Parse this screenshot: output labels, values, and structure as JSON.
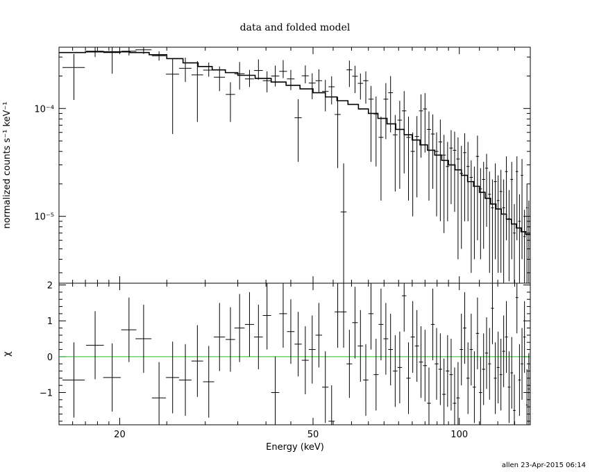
{
  "footer": "allen 23-Apr-2015 06:14",
  "chart_data": [
    {
      "type": "line",
      "title": "data and folded model",
      "xlabel": "",
      "ylabel": "normalized counts s⁻¹ keV⁻¹",
      "xscale": "log",
      "yscale": "log",
      "xlim": [
        15,
        140
      ],
      "ylim": [
        2.4e-06,
        0.00037
      ],
      "y_tick_labels": [
        "10⁻⁵",
        "10⁻⁴"
      ],
      "y_ticks": [
        1e-05,
        0.0001
      ],
      "series": [
        {
          "kind": "data",
          "x": [
            16.1,
            17.8,
            19.3,
            20.9,
            22.4,
            24.1,
            25.7,
            27.3,
            28.9,
            30.5,
            32.1,
            33.8,
            35.3,
            37.0,
            38.6,
            40.2,
            41.8,
            43.4,
            45.0,
            46.6,
            48.2,
            49.8,
            51.4,
            53.0,
            54.6,
            56.2,
            57.8,
            59.4,
            61.0,
            62.6,
            64.2,
            65.8,
            67.4,
            69.0,
            70.6,
            72.2,
            73.8,
            75.4,
            77.0,
            78.6,
            80.2,
            81.8,
            83.4,
            85.0,
            86.6,
            88.2,
            89.8,
            91.4,
            93.0,
            94.6,
            96.2,
            97.8,
            99.4,
            101.0,
            102.6,
            104.2,
            105.8,
            107.4,
            109.0,
            110.6,
            112.2,
            113.8,
            115.4,
            117.0,
            118.6,
            120.2,
            121.8,
            123.4,
            125.0,
            126.6,
            128.2,
            129.8,
            131.4,
            133.0,
            134.6,
            136.2,
            137.8,
            139.0
          ],
          "y": [
            0.00024,
            0.00034,
            0.00033,
            0.00034,
            0.00035,
            0.000308,
            0.000208,
            0.000236,
            0.000205,
            0.000227,
            0.000195,
            0.000135,
            0.00021,
            0.000188,
            0.000225,
            0.000181,
            0.0002,
            0.000221,
            0.000188,
            8.2e-05,
            0.000201,
            0.000172,
            0.000181,
            0.000144,
            0.000159,
            8.8e-05,
            1.1e-05,
            0.000228,
            0.000199,
            0.000171,
            0.000181,
            0.000122,
            8.9e-05,
            5.4e-05,
            0.000122,
            0.00014,
            5.7e-05,
            7.8e-05,
            9.5e-05,
            5.4e-05,
            4e-05,
            5.5e-05,
            9.5e-05,
            9.9e-05,
            6.4e-05,
            5.8e-05,
            4e-05,
            4.9e-05,
            3.7e-05,
            2.9e-05,
            4.3e-05,
            4.1e-05,
            3.4e-05,
            2.5e-05,
            3.9e-05,
            2.9e-05,
            2.3e-05,
            1.9e-05,
            3.6e-05,
            1.8e-05,
            2.2e-05,
            2.8e-05,
            1.6e-05,
            1.2e-05,
            2.1e-05,
            1.4e-05,
            1.7e-05,
            1.2e-05,
            2.6e-05,
            9.5e-06,
            2.2e-05,
            7e-06,
            2.6e-05,
            9e-06,
            2.4e-05,
            6.5e-06,
            1.2e-05,
            8e-06
          ],
          "err_lo": [
            0.00012,
            4e-05,
            0.00012,
            3e-05,
            3e-05,
            3e-05,
            0.00015,
            6e-05,
            0.00013,
            3e-05,
            5e-05,
            6e-05,
            6e-05,
            3e-05,
            4e-05,
            4e-05,
            4e-05,
            3e-05,
            4e-05,
            5e-05,
            3e-05,
            5e-05,
            4e-05,
            5e-05,
            5e-05,
            6e-05,
            8.6e-06,
            7e-05,
            6e-05,
            5e-05,
            7e-05,
            9e-05,
            6e-05,
            4e-05,
            7e-05,
            8e-05,
            4e-05,
            6e-05,
            7e-05,
            4e-05,
            3e-05,
            4e-05,
            6e-05,
            6e-05,
            5e-05,
            4e-05,
            3e-05,
            4e-05,
            3e-05,
            2e-05,
            3e-05,
            3e-05,
            3e-05,
            2e-05,
            3e-05,
            2e-05,
            2e-05,
            1.5e-05,
            3e-05,
            1.4e-05,
            1.7e-05,
            2e-05,
            1.3e-05,
            1e-05,
            1.7e-05,
            1.1e-05,
            1.4e-05,
            1e-05,
            2e-05,
            7e-06,
            1.8e-05,
            4.6e-06,
            2e-05,
            6.6e-06,
            2e-05,
            4.1e-06,
            9.6e-06,
            5.6e-06
          ],
          "err_hi": [
            8e-05,
            4e-05,
            8e-05,
            4e-05,
            3e-05,
            3e-05,
            8e-05,
            6e-05,
            7e-05,
            4e-05,
            5e-05,
            4e-05,
            6e-05,
            4e-05,
            6e-05,
            4e-05,
            5e-05,
            6e-05,
            4e-05,
            4e-05,
            5e-05,
            4e-05,
            5e-05,
            4e-05,
            4e-05,
            4e-05,
            2e-05,
            5e-05,
            5e-05,
            4e-05,
            4e-05,
            4e-05,
            4e-05,
            3e-05,
            5e-05,
            6e-05,
            3e-05,
            4e-05,
            5e-05,
            3e-05,
            2e-05,
            3e-05,
            4e-05,
            4e-05,
            3e-05,
            3e-05,
            2e-05,
            3e-05,
            2e-05,
            2e-05,
            2e-05,
            2e-05,
            2e-05,
            2e-05,
            2e-05,
            2e-05,
            1e-05,
            1e-05,
            2e-05,
            1e-05,
            1e-05,
            1e-05,
            1e-05,
            1e-05,
            1e-05,
            1e-05,
            1e-05,
            1e-05,
            1e-05,
            8e-06,
            1e-05,
            6e-06,
            1e-05,
            7e-06,
            1e-05,
            5e-06,
            8e-06,
            6e-06
          ]
        },
        {
          "kind": "model",
          "x": [
            15,
            17,
            19,
            21,
            23,
            25,
            27,
            29,
            31,
            33,
            35,
            38,
            41,
            44,
            47,
            50,
            53,
            56,
            59,
            62,
            65,
            68,
            71,
            74,
            77,
            80,
            83,
            86,
            89,
            92,
            95,
            98,
            101,
            104,
            107,
            110,
            113,
            116,
            119,
            122,
            125,
            128,
            131,
            134,
            137,
            140
          ],
          "y": [
            0.00033,
            0.000335,
            0.000335,
            0.00033,
            0.000315,
            0.00029,
            0.000265,
            0.000245,
            0.000228,
            0.000215,
            0.000203,
            0.00019,
            0.000176,
            0.000164,
            0.000152,
            0.00014,
            0.000128,
            0.000118,
            0.000109,
            9.9e-05,
            9e-05,
            8.1e-05,
            7.2e-05,
            6.4e-05,
            5.7e-05,
            5.1e-05,
            4.6e-05,
            4.1e-05,
            3.7e-05,
            3.3e-05,
            3e-05,
            2.7e-05,
            2.4e-05,
            2.1e-05,
            1.9e-05,
            1.67e-05,
            1.47e-05,
            1.3e-05,
            1.17e-05,
            1.05e-05,
            9.4e-06,
            8.5e-06,
            7.8e-06,
            7.2e-06,
            6.8e-06,
            6.6e-06
          ]
        }
      ]
    },
    {
      "type": "scatter",
      "title": "",
      "xlabel": "Energy (keV)",
      "ylabel": "χ",
      "xscale": "log",
      "xlim": [
        15,
        140
      ],
      "ylim": [
        -1.9,
        2.05
      ],
      "x_ticks": [
        20,
        50,
        100
      ],
      "y_ticks": [
        -1,
        0,
        1,
        2
      ],
      "y_tick_labels": [
        "−1",
        "0",
        "1",
        "2"
      ],
      "reference_line": {
        "y": 0,
        "color": "#22bb22"
      },
      "series": [
        {
          "kind": "residuals",
          "x": [
            16.1,
            17.8,
            19.3,
            20.9,
            22.4,
            24.1,
            25.7,
            27.3,
            28.9,
            30.5,
            32.1,
            33.8,
            35.3,
            37.0,
            38.6,
            40.2,
            41.8,
            43.4,
            45.0,
            46.6,
            48.2,
            49.8,
            51.4,
            53.0,
            54.6,
            56.2,
            57.8,
            59.4,
            61.0,
            62.6,
            64.2,
            65.8,
            67.4,
            69.0,
            70.6,
            72.2,
            73.8,
            75.4,
            77.0,
            78.6,
            80.2,
            81.8,
            83.4,
            85.0,
            86.6,
            88.2,
            89.8,
            91.4,
            93.0,
            94.6,
            96.2,
            97.8,
            99.4,
            101.0,
            102.6,
            104.2,
            105.8,
            107.4,
            109.0,
            110.6,
            112.2,
            113.8,
            115.4,
            117.0,
            118.6,
            120.2,
            121.8,
            123.4,
            125.0,
            126.6,
            128.2,
            129.8,
            131.4,
            133.0,
            134.6,
            136.2,
            137.8,
            139.0
          ],
          "y": [
            -0.65,
            0.32,
            -0.58,
            0.75,
            0.5,
            -1.15,
            -0.58,
            -0.65,
            -0.12,
            -0.7,
            0.55,
            0.48,
            0.8,
            0.9,
            0.55,
            1.15,
            -1.0,
            1.2,
            0.7,
            0.35,
            -0.1,
            0.2,
            0.6,
            -0.85,
            -1.8,
            1.25,
            1.25,
            -0.2,
            0.95,
            0.3,
            -0.65,
            1.2,
            -0.5,
            0.9,
            0.5,
            0.2,
            -0.4,
            -0.3,
            1.7,
            -0.6,
            0.55,
            0.3,
            -0.15,
            -0.25,
            -1.3,
            0.9,
            -0.2,
            -0.35,
            -1.05,
            -0.4,
            -0.5,
            -1.3,
            -1.15,
            0.2,
            0.8,
            -0.6,
            0.2,
            -0.85,
            0.65,
            -1.0,
            -0.35,
            0.1,
            -0.2,
            1.35,
            -0.6,
            -0.3,
            -0.5,
            0.15,
            0.55,
            -0.85,
            -0.45,
            -1.5,
            1.65,
            -0.65,
            -0.2,
            0.55,
            -1.35,
            -0.9
          ],
          "err": [
            1.05,
            0.95,
            0.95,
            0.9,
            0.95,
            1.0,
            1.0,
            1.0,
            1.0,
            1.0,
            0.95,
            0.9,
            0.95,
            0.9,
            0.9,
            0.95,
            1.0,
            0.95,
            0.9,
            0.9,
            0.95,
            0.95,
            0.9,
            1.0,
            1.0,
            1.0,
            1.0,
            0.95,
            1.0,
            1.0,
            1.0,
            1.0,
            1.0,
            1.0,
            1.0,
            1.0,
            1.0,
            1.0,
            1.0,
            1.0,
            1.0,
            1.0,
            1.0,
            1.0,
            1.0,
            1.0,
            1.0,
            1.0,
            1.0,
            1.0,
            1.0,
            1.0,
            1.0,
            1.0,
            1.0,
            1.0,
            1.0,
            1.0,
            1.0,
            1.0,
            1.0,
            1.0,
            1.0,
            1.0,
            1.0,
            1.0,
            1.0,
            1.0,
            1.0,
            1.0,
            1.0,
            1.0,
            1.0,
            1.0,
            1.0,
            1.0,
            1.0,
            1.0
          ]
        }
      ]
    }
  ]
}
